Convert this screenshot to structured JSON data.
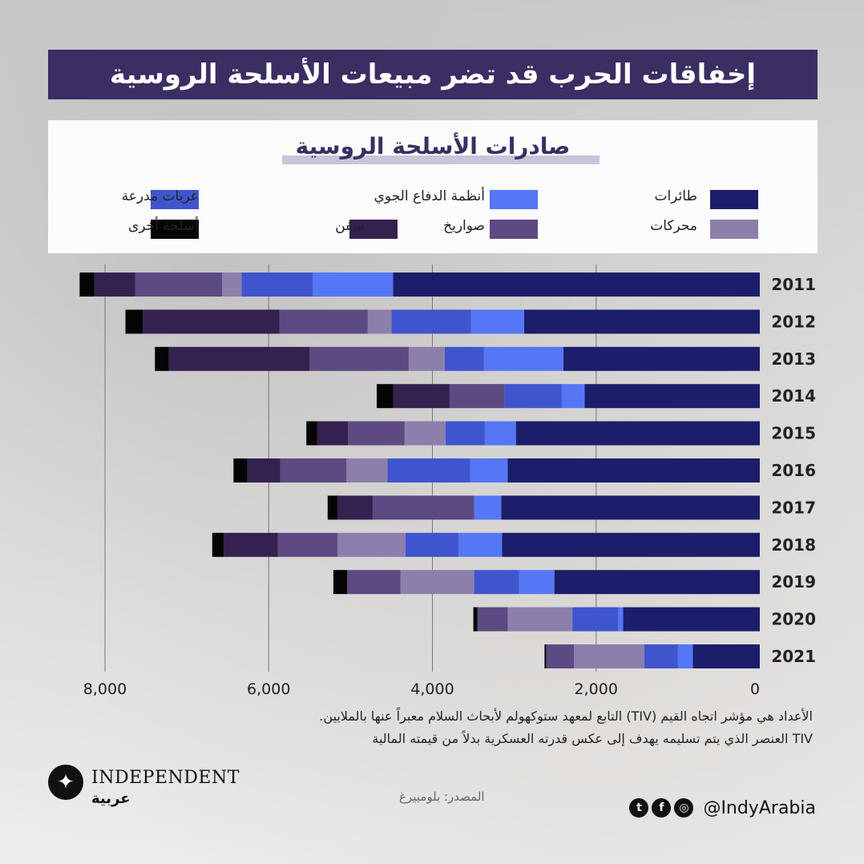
{
  "header": {
    "title": "إخفاقات الحرب قد تضر مبيعات الأسلحة الروسية"
  },
  "chart_data": {
    "type": "bar",
    "orientation": "horizontal-stacked",
    "title": "صادرات الأسلحة الروسية",
    "categories": [
      "2011",
      "2012",
      "2013",
      "2014",
      "2015",
      "2016",
      "2017",
      "2018",
      "2019",
      "2020",
      "2021"
    ],
    "xlim": [
      0,
      8500
    ],
    "x_ticks": [
      0,
      2000,
      4000,
      6000,
      8000
    ],
    "x_tick_labels": [
      "0",
      "2,000",
      "4,000",
      "6,000",
      "8,000"
    ],
    "grid": true,
    "legend_placement": "top",
    "series": [
      {
        "name": "طائرات",
        "color": "#1c1e6b",
        "values": [
          4480,
          2880,
          2400,
          2140,
          2980,
          3080,
          3160,
          3150,
          2510,
          1670,
          820
        ]
      },
      {
        "name": "أنظمة الدفاع الجوي",
        "color": "#5577f5",
        "values": [
          980,
          650,
          970,
          280,
          380,
          460,
          330,
          530,
          430,
          60,
          180
        ]
      },
      {
        "name": "عربات مدرعة",
        "color": "#3f55cd",
        "values": [
          870,
          970,
          480,
          700,
          480,
          1010,
          0,
          650,
          550,
          560,
          410
        ]
      },
      {
        "name": "محركات",
        "color": "#8c7fac",
        "values": [
          240,
          290,
          440,
          0,
          500,
          500,
          0,
          830,
          900,
          790,
          860
        ]
      },
      {
        "name": "صواريخ",
        "color": "#5c4a83",
        "values": [
          1060,
          1080,
          1210,
          670,
          690,
          810,
          1240,
          730,
          650,
          370,
          340
        ]
      },
      {
        "name": "سفن",
        "color": "#35214f",
        "values": [
          500,
          1670,
          1720,
          690,
          380,
          400,
          430,
          660,
          0,
          0,
          0
        ]
      },
      {
        "name": "أسلحة أخرى",
        "color": "#050505",
        "values": [
          180,
          210,
          170,
          200,
          130,
          170,
          120,
          140,
          170,
          50,
          20
        ]
      }
    ]
  },
  "legend": {
    "items": [
      {
        "label": "طائرات",
        "color": "#1c1e6b"
      },
      {
        "label": "أنظمة الدفاع الجوي",
        "color": "#5577f5"
      },
      {
        "label": "عربات مدرعة",
        "color": "#3f55cd"
      },
      {
        "label": "محركات",
        "color": "#8c7fac"
      },
      {
        "label": "صواريخ",
        "color": "#5c4a83"
      },
      {
        "label": "سفن",
        "color": "#35214f"
      },
      {
        "label": "أسلحة أخرى",
        "color": "#050505"
      }
    ]
  },
  "notes": {
    "line1": "الأعداد هي مؤشر اتجاه القيم (TIV) التابع لمعهد ستوكهولم لأبحاث السلام معبراً عنها بالملايين.",
    "line2": "TIV العنصر الذي يتم تسليمه يهدف إلى عكس قدرته العسكرية بدلاً من قيمته المالية"
  },
  "footer": {
    "logo_word": "INDEPENDENT",
    "logo_sub": "عربية",
    "source": "المصدر: بلومبيرغ",
    "social_handle": "@IndyArabia",
    "social_icons": [
      "twitter-icon",
      "facebook-icon",
      "instagram-icon"
    ]
  }
}
